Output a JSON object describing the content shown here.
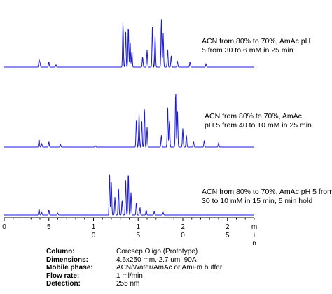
{
  "chart_data": {
    "type": "line",
    "x_unit": "min",
    "x_range": [
      0,
      28
    ],
    "x_axis_tick_labels": [
      "0",
      "5",
      "1\n0",
      "1\n5",
      "2\n0",
      "2\n5",
      "m\ni\nn"
    ],
    "line_color": "#1a1adc",
    "grid": false,
    "series": [
      {
        "label": [
          "ACN from 80% to 70%, AmAc pH",
          "5 from 30 to 6 mM in 25 min"
        ],
        "peaks": [
          {
            "t": 3.9,
            "h": 0.12
          },
          {
            "t": 4.0,
            "h": 0.08
          },
          {
            "t": 5.0,
            "h": 0.09
          },
          {
            "t": 5.8,
            "h": 0.04
          },
          {
            "t": 13.3,
            "h": 0.78
          },
          {
            "t": 13.6,
            "h": 0.62
          },
          {
            "t": 13.9,
            "h": 0.72
          },
          {
            "t": 14.1,
            "h": 0.45
          },
          {
            "t": 14.3,
            "h": 0.28
          },
          {
            "t": 15.5,
            "h": 0.18
          },
          {
            "t": 16.0,
            "h": 0.3
          },
          {
            "t": 16.6,
            "h": 0.72
          },
          {
            "t": 16.9,
            "h": 0.55
          },
          {
            "t": 17.6,
            "h": 0.85
          },
          {
            "t": 17.8,
            "h": 0.6
          },
          {
            "t": 18.3,
            "h": 0.32
          },
          {
            "t": 18.7,
            "h": 0.2
          },
          {
            "t": 19.4,
            "h": 0.1
          },
          {
            "t": 20.8,
            "h": 0.09
          },
          {
            "t": 22.6,
            "h": 0.06
          }
        ]
      },
      {
        "label": [
          "ACN from 80% to 70%, AmAc",
          "pH 5 from 40 to 10 mM in 25 min"
        ],
        "peaks": [
          {
            "t": 3.9,
            "h": 0.12
          },
          {
            "t": 4.2,
            "h": 0.05
          },
          {
            "t": 5.0,
            "h": 0.08
          },
          {
            "t": 6.3,
            "h": 0.04
          },
          {
            "t": 10.2,
            "h": 0.02
          },
          {
            "t": 14.8,
            "h": 0.42
          },
          {
            "t": 15.1,
            "h": 0.5
          },
          {
            "t": 15.4,
            "h": 0.4
          },
          {
            "t": 15.7,
            "h": 0.6
          },
          {
            "t": 16.0,
            "h": 0.3
          },
          {
            "t": 17.6,
            "h": 0.18
          },
          {
            "t": 18.3,
            "h": 0.62
          },
          {
            "t": 18.5,
            "h": 0.4
          },
          {
            "t": 19.2,
            "h": 0.85
          },
          {
            "t": 19.4,
            "h": 0.55
          },
          {
            "t": 20.0,
            "h": 0.28
          },
          {
            "t": 20.4,
            "h": 0.18
          },
          {
            "t": 21.2,
            "h": 0.08
          },
          {
            "t": 22.4,
            "h": 0.1
          },
          {
            "t": 24.0,
            "h": 0.06
          }
        ]
      },
      {
        "label": [
          "ACN from 80% to 70%, AmAc pH 5 from",
          "30 to 10 mM in 15 min, 5 min hold"
        ],
        "peaks": [
          {
            "t": 3.9,
            "h": 0.12
          },
          {
            "t": 4.2,
            "h": 0.05
          },
          {
            "t": 5.0,
            "h": 0.1
          },
          {
            "t": 6.0,
            "h": 0.04
          },
          {
            "t": 11.8,
            "h": 0.8
          },
          {
            "t": 12.0,
            "h": 0.65
          },
          {
            "t": 12.4,
            "h": 0.35
          },
          {
            "t": 12.8,
            "h": 0.55
          },
          {
            "t": 13.2,
            "h": 0.3
          },
          {
            "t": 13.6,
            "h": 0.7
          },
          {
            "t": 13.9,
            "h": 0.85
          },
          {
            "t": 14.2,
            "h": 0.45
          },
          {
            "t": 14.8,
            "h": 0.25
          },
          {
            "t": 15.2,
            "h": 0.15
          },
          {
            "t": 15.9,
            "h": 0.1
          },
          {
            "t": 16.8,
            "h": 0.07
          },
          {
            "t": 17.8,
            "h": 0.05
          }
        ]
      }
    ]
  },
  "conditions": [
    {
      "key": "Column:",
      "value": "Coresep Oligo (Prototype)"
    },
    {
      "key": "Dimensions:",
      "value": "4.6x250 mm, 2.7 um, 90A"
    },
    {
      "key": "Mobile phase:",
      "value": "ACN/Water/AmAc or AmFm buffer"
    },
    {
      "key": "Flow rate:",
      "value": "1 ml/min"
    },
    {
      "key": "Detection:",
      "value": "255 nm"
    }
  ]
}
